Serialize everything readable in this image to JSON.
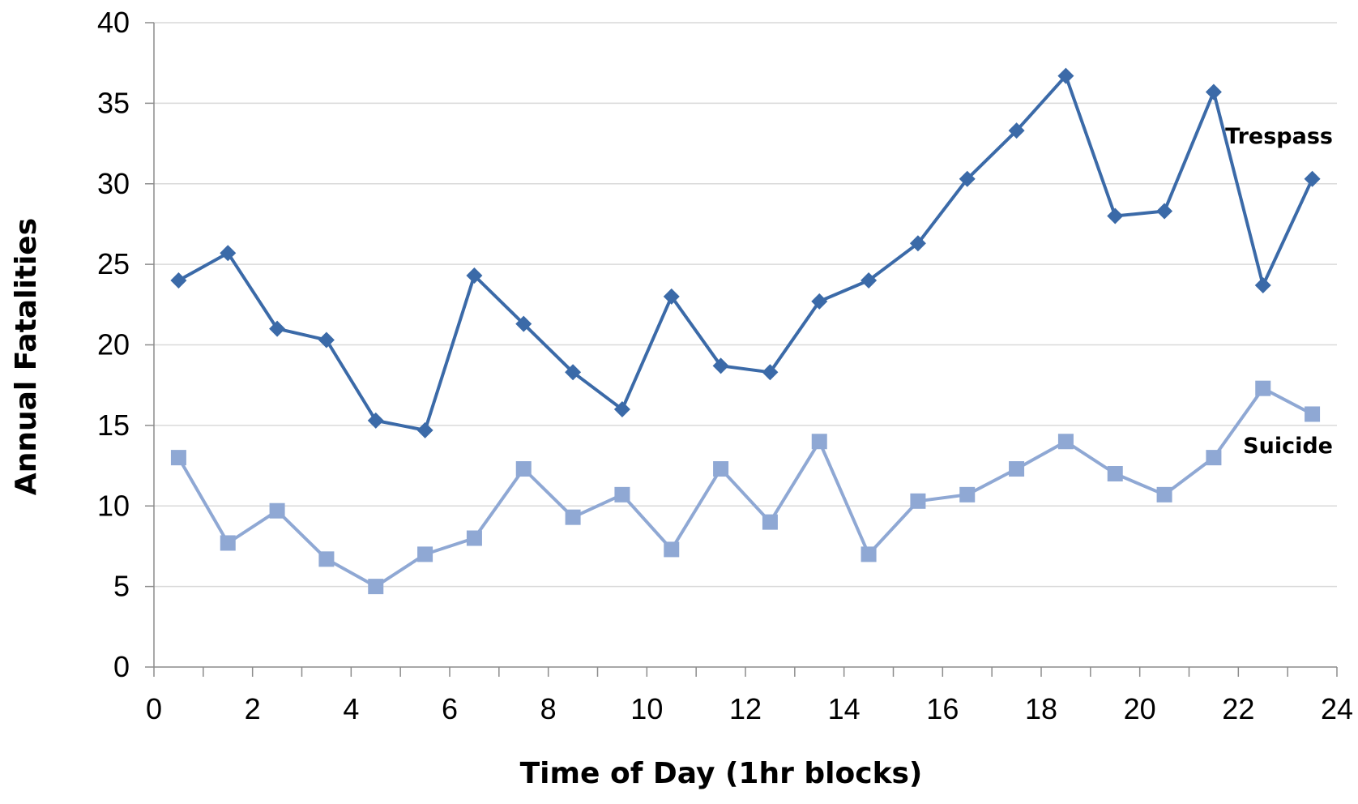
{
  "chart_data": {
    "type": "line",
    "title": "",
    "xlabel": "Time of Day (1hr blocks)",
    "ylabel": "Annual Fatalities",
    "xlim": [
      0,
      24
    ],
    "ylim": [
      0,
      40
    ],
    "x_ticks": [
      "0",
      "2",
      "4",
      "6",
      "8",
      "10",
      "12",
      "14",
      "16",
      "18",
      "20",
      "22",
      "24"
    ],
    "y_ticks": [
      "0",
      "5",
      "10",
      "15",
      "20",
      "25",
      "30",
      "35",
      "40"
    ],
    "grid": "horizontal",
    "legend": "none (series labelled inline near right end)",
    "x": [
      0.5,
      1.5,
      2.5,
      3.5,
      4.5,
      5.5,
      6.5,
      7.5,
      8.5,
      9.5,
      10.5,
      11.5,
      12.5,
      13.5,
      14.5,
      15.5,
      16.5,
      17.5,
      18.5,
      19.5,
      20.5,
      21.5,
      22.5,
      23.5
    ],
    "series": [
      {
        "name": "Trespass",
        "color": "#3b6aa8",
        "marker": "diamond",
        "values": [
          24.0,
          25.7,
          21.0,
          20.3,
          15.3,
          14.7,
          24.3,
          21.3,
          18.3,
          16.0,
          23.0,
          18.7,
          18.3,
          22.7,
          24.0,
          26.3,
          30.3,
          33.3,
          36.7,
          28.0,
          28.3,
          35.7,
          23.7,
          30.3
        ]
      },
      {
        "name": "Suicide",
        "color": "#8fa8d4",
        "marker": "square",
        "values": [
          13.0,
          7.7,
          9.7,
          6.7,
          5.0,
          7.0,
          8.0,
          12.3,
          9.3,
          10.7,
          7.3,
          12.3,
          9.0,
          14.0,
          7.0,
          10.3,
          10.7,
          12.3,
          14.0,
          12.0,
          10.7,
          13.0,
          17.3,
          15.7
        ]
      }
    ]
  }
}
